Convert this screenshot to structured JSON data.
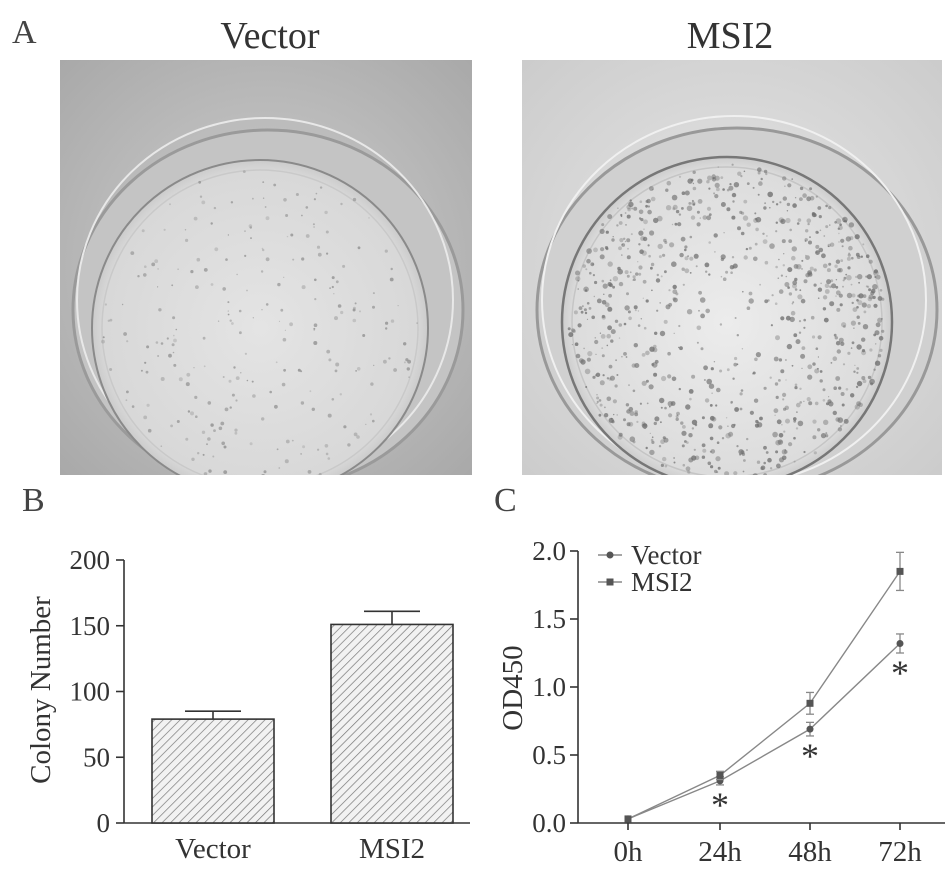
{
  "panels": {
    "a": {
      "letter": "A",
      "left_title": "Vector",
      "right_title": "MSI2"
    },
    "b": {
      "letter": "B"
    },
    "c": {
      "letter": "C"
    }
  },
  "chart_data": [
    {
      "type": "bar",
      "panel": "B",
      "title": "",
      "xlabel": "",
      "ylabel": "Colony Number",
      "ylim": [
        0,
        200
      ],
      "yticks": [
        "0",
        "50",
        "100",
        "150",
        "200"
      ],
      "categories": [
        "Vector",
        "MSI2"
      ],
      "values": [
        79,
        151
      ],
      "errors": [
        6,
        10
      ],
      "fill": "diagonal hatch",
      "grid": false
    },
    {
      "type": "line",
      "panel": "C",
      "title": "",
      "xlabel": "",
      "ylabel": "OD450",
      "ylim": [
        0.0,
        2.0
      ],
      "yticks": [
        "0.0",
        "0.5",
        "1.0",
        "1.5",
        "2.0"
      ],
      "x": [
        "0h",
        "24h",
        "48h",
        "72h"
      ],
      "legend_position": "top-left",
      "grid": false,
      "series": [
        {
          "name": "Vector",
          "marker": "circle",
          "values": [
            0.03,
            0.31,
            0.69,
            1.32
          ],
          "errors": [
            0.01,
            0.03,
            0.05,
            0.07
          ]
        },
        {
          "name": "MSI2",
          "marker": "square",
          "values": [
            0.03,
            0.35,
            0.88,
            1.85
          ],
          "errors": [
            0.01,
            0.03,
            0.08,
            0.14
          ]
        }
      ],
      "annotations": [
        {
          "text": "*",
          "x": "24h"
        },
        {
          "text": "*",
          "x": "48h"
        },
        {
          "text": "*",
          "x": "72h"
        }
      ]
    }
  ],
  "colors": {
    "axis": "#333333",
    "bar_fill": "#f2f2f2",
    "hatch": "#777777",
    "line": "#888888",
    "photo_bg_left": "#bdbdbd",
    "photo_bg_right": "#d9d9d9"
  }
}
